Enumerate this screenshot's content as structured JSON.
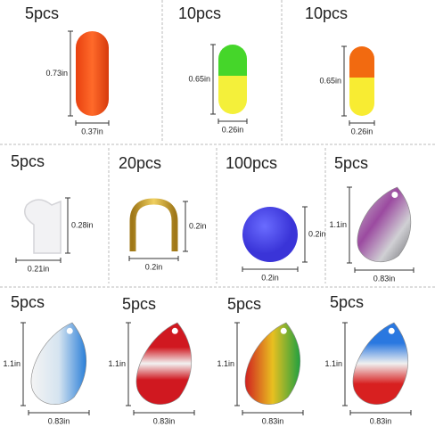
{
  "panels": [
    {
      "quantity": "5pcs",
      "height": "0.73in",
      "width": "0.37in"
    },
    {
      "quantity": "10pcs",
      "height": "0.65in",
      "width": "0.26in"
    },
    {
      "quantity": "10pcs",
      "height": "0.65in",
      "width": "0.26in"
    },
    {
      "quantity": "5pcs",
      "height": "0.28in",
      "width": "0.21in"
    },
    {
      "quantity": "20pcs",
      "height": "0.2in",
      "width": "0.2in"
    },
    {
      "quantity": "100pcs",
      "height": "0.2in",
      "width": "0.2in"
    },
    {
      "quantity": "5pcs",
      "height": "1.1in",
      "width": "0.83in"
    },
    {
      "quantity": "5pcs",
      "height": "1.1in",
      "width": "0.83in"
    },
    {
      "quantity": "5pcs",
      "height": "1.1in",
      "width": "0.83in"
    },
    {
      "quantity": "5pcs",
      "height": "1.1in",
      "width": "0.83in"
    },
    {
      "quantity": "5pcs",
      "height": "1.1in",
      "width": "0.83in"
    }
  ]
}
